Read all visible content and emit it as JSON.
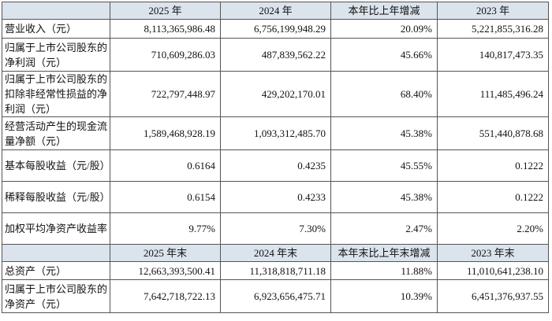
{
  "table": {
    "header": [
      "2025 年",
      "2024 年",
      "本年比上年增减",
      "2023 年"
    ],
    "rows": [
      [
        "营业收入（元）",
        "8,113,365,986.48",
        "6,756,199,948.29",
        "20.09%",
        "5,221,855,316.28"
      ],
      [
        "归属于上市公司股东的净利润（元）",
        "710,609,286.03",
        "487,839,562.22",
        "45.66%",
        "140,817,473.35"
      ],
      [
        "归属于上市公司股东的扣除非经常性损益的净利润（元）",
        "722,797,448.97",
        "429,202,170.01",
        "68.40%",
        "111,485,496.24"
      ],
      [
        "经营活动产生的现金流量净额（元）",
        "1,589,468,928.19",
        "1,093,312,485.70",
        "45.38%",
        "551,440,878.68"
      ],
      [
        "基本每股收益（元/股）",
        "0.6164",
        "0.4235",
        "45.55%",
        "0.1222"
      ],
      [
        "稀释每股收益（元/股）",
        "0.6154",
        "0.4233",
        "45.38%",
        "0.1222"
      ],
      [
        "加权平均净资产收益率",
        "9.77%",
        "7.30%",
        "2.47%",
        "2.20%"
      ]
    ],
    "header2": [
      "2025 年末",
      "2024 年末",
      "本年末比上年末增减",
      "2023 年末"
    ],
    "rows2": [
      [
        "总资产（元）",
        "12,663,393,500.41",
        "11,318,818,711.18",
        "11.88%",
        "11,010,641,238.10"
      ],
      [
        "归属于上市公司股东的净资产（元）",
        "7,642,718,722.13",
        "6,923,656,475.71",
        "10.39%",
        "6,451,376,937.55"
      ]
    ]
  }
}
